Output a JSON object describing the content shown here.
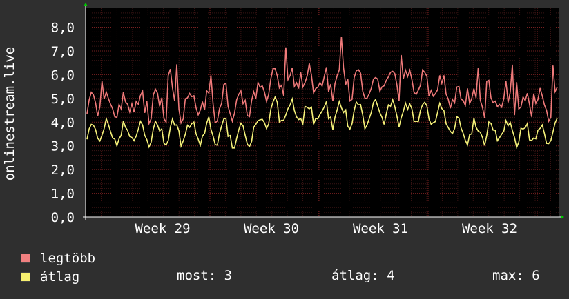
{
  "chart_data": {
    "type": "line",
    "ylabel": "onlinestream.live",
    "yticks": [
      "0,0",
      "1,0",
      "2,0",
      "3,0",
      "4,0",
      "5,0",
      "6,0",
      "7,0",
      "8,0"
    ],
    "ylim": [
      0,
      8.8
    ],
    "week_labels": [
      "Week 29",
      "Week 30",
      "Week 31",
      "Week 32"
    ],
    "grid": true,
    "colors": {
      "background": "#2f2f2f",
      "plot": "#000000",
      "max_series": "#f07a7a",
      "avg_series": "#f6f27a",
      "grid": "#7a2020",
      "axis": "#ffffff",
      "arrow": "#00cc00"
    },
    "series": [
      {
        "name": "legtöbb",
        "color": "#f07a7a",
        "swatch": "#f08080"
      },
      {
        "name": "átlag",
        "color": "#f6f27a",
        "swatch": "#f8f070"
      }
    ]
  },
  "legend": {
    "max_label": "legtöbb",
    "avg_label": "átlag"
  },
  "stats": {
    "now": "most: 3",
    "avg": "átlag: 4",
    "max": "max: 6"
  }
}
